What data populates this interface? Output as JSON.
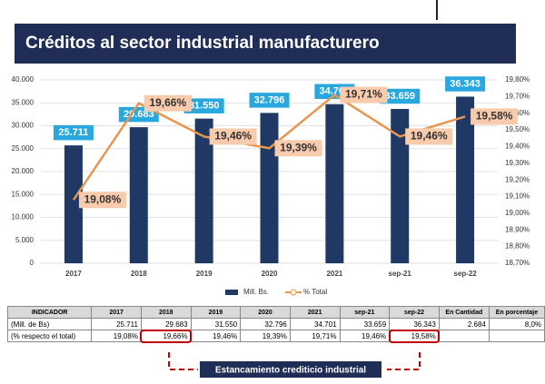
{
  "chart_data": {
    "type": "bar-line",
    "title": "Créditos al sector industrial manufacturero",
    "categories": [
      "2017",
      "2018",
      "2019",
      "2020",
      "2021",
      "sep-21",
      "sep-22"
    ],
    "series": [
      {
        "name": "Mill. Bs.",
        "type": "bar",
        "color": "#1f3864",
        "label_color": "#29a8e0",
        "values": [
          25711,
          29683,
          31550,
          32796,
          34701,
          33659,
          36343
        ],
        "value_labels": [
          "25.711",
          "29.683",
          "31.550",
          "32.796",
          "34.701",
          "33.659",
          "36.343"
        ]
      },
      {
        "name": "% Total",
        "type": "line",
        "axis": "y2",
        "color": "#e8954f",
        "label_color": "#f8cbad",
        "values": [
          19.08,
          19.66,
          19.46,
          19.39,
          19.71,
          19.46,
          19.58
        ],
        "value_labels": [
          "19,08%",
          "19,66%",
          "19,46%",
          "19,39%",
          "19,71%",
          "19,46%",
          "19,58%"
        ]
      }
    ],
    "ylim": [
      0,
      40000
    ],
    "yticks": [
      0,
      {
        "value": 5000,
        "label": "5.000"
      },
      {
        "value": 10000,
        "label": "10.000"
      },
      {
        "value": 15000,
        "label": "15.000"
      },
      {
        "value": 20000,
        "label": "20.000"
      },
      {
        "value": 25000,
        "label": "25.000"
      },
      {
        "value": 30000,
        "label": "30.000"
      },
      {
        "value": 35000,
        "label": "35.000"
      },
      {
        "value": 40000,
        "label": "40.000"
      }
    ],
    "y2lim": [
      18.7,
      19.8
    ],
    "y2ticks": [
      {
        "value": 18.7,
        "label": "18,70%"
      },
      {
        "value": 18.8,
        "label": "18,80%"
      },
      {
        "value": 18.9,
        "label": "18,90%"
      },
      {
        "value": 19.0,
        "label": "19,00%"
      },
      {
        "value": 19.1,
        "label": "19,10%"
      },
      {
        "value": 19.2,
        "label": "19,20%"
      },
      {
        "value": 19.3,
        "label": "19,30%"
      },
      {
        "value": 19.4,
        "label": "19,40%"
      },
      {
        "value": 19.5,
        "label": "19,50%"
      },
      {
        "value": 19.6,
        "label": "19,60%"
      },
      {
        "value": 19.7,
        "label": "19,70%"
      },
      {
        "value": 19.8,
        "label": "19,80%"
      }
    ],
    "grid": true,
    "legend": "bottom"
  },
  "table": {
    "header": [
      "INDICADOR",
      "2017",
      "2018",
      "2019",
      "2020",
      "2021",
      "sep-21",
      "sep-22",
      "En Cantidad",
      "En porcentaje"
    ],
    "rows": [
      [
        "(Mill. de Bs)",
        "25.711",
        "29.683",
        "31.550",
        "32.796",
        "34.701",
        "33.659",
        "36.343",
        "2.684",
        "8,0%"
      ],
      [
        "(% respecto el total)",
        "19,08%",
        "19,66%",
        "19,46%",
        "19,39%",
        "19,71%",
        "19,46%",
        "19,58%"
      ]
    ]
  },
  "annotation": "Estancamiento crediticio industrial"
}
